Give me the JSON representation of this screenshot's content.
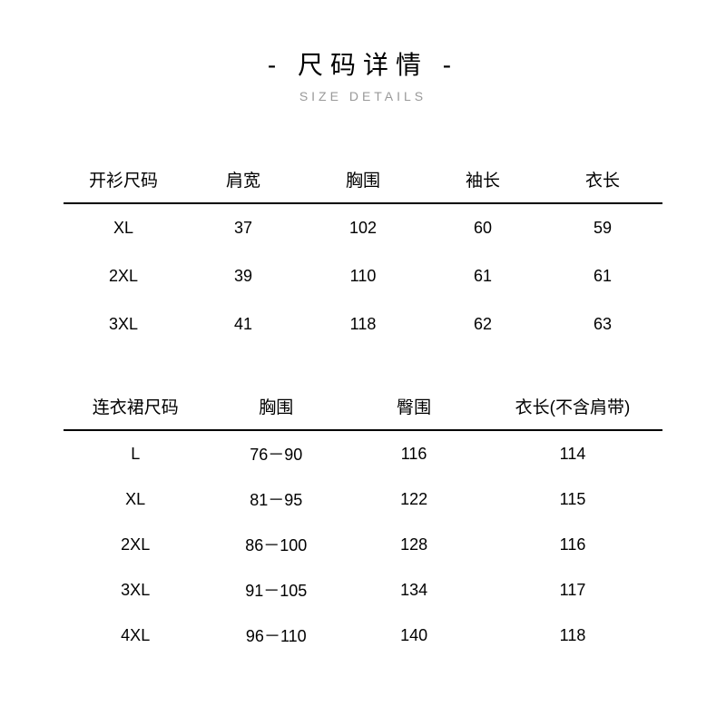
{
  "header": {
    "title_cn": "- 尺码详情 -",
    "title_en": "SIZE DETAILS"
  },
  "colors": {
    "background": "#ffffff",
    "text": "#000000",
    "subtitle": "#999999",
    "rule": "#000000"
  },
  "table1": {
    "columns": [
      "开衫尺码",
      "肩宽",
      "胸围",
      "袖长",
      "衣长"
    ],
    "col_widths_pct": [
      20,
      20,
      20,
      20,
      20
    ],
    "rows": [
      [
        "XL",
        "37",
        "102",
        "60",
        "59"
      ],
      [
        "2XL",
        "39",
        "110",
        "61",
        "61"
      ],
      [
        "3XL",
        "41",
        "118",
        "62",
        "63"
      ]
    ]
  },
  "table2": {
    "columns": [
      "连衣裙尺码",
      "胸围",
      "臀围",
      "衣长(不含肩带)"
    ],
    "col_widths_pct": [
      24,
      23,
      23,
      30
    ],
    "rows": [
      [
        "L",
        "76－90",
        "116",
        "114"
      ],
      [
        "XL",
        "81－95",
        "122",
        "115"
      ],
      [
        "2XL",
        "86－100",
        "128",
        "116"
      ],
      [
        "3XL",
        "91－105",
        "134",
        "117"
      ],
      [
        "4XL",
        "96－110",
        "140",
        "118"
      ]
    ]
  }
}
